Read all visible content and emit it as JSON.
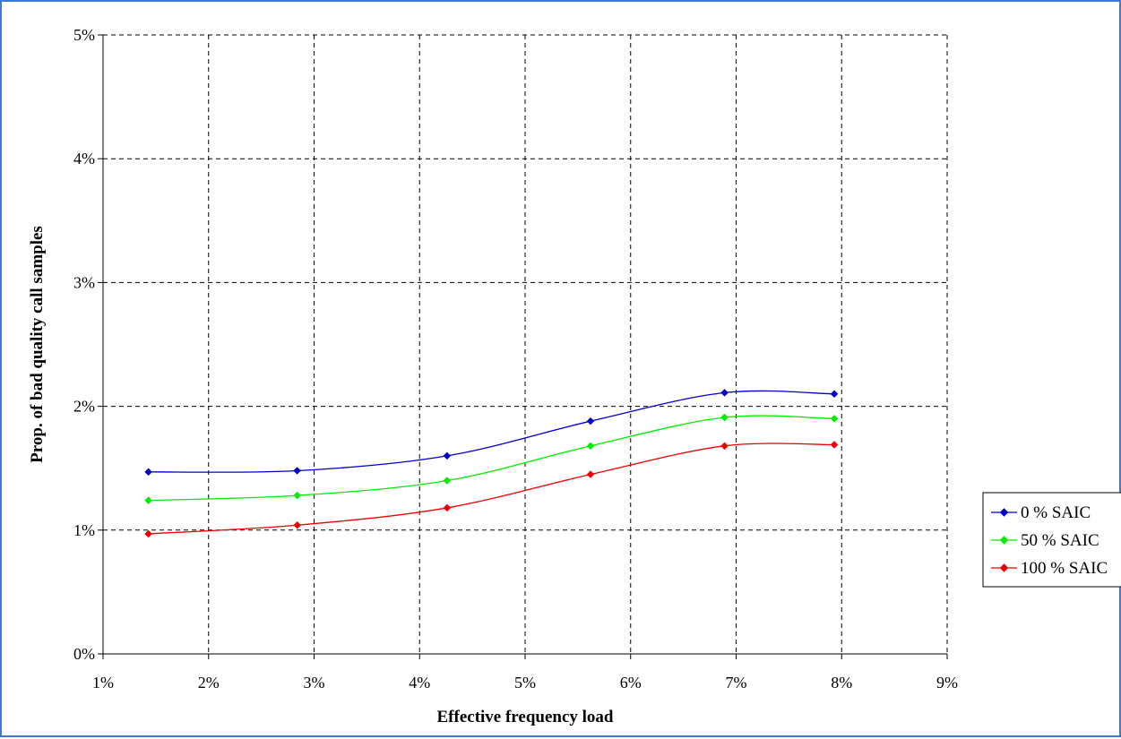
{
  "chart_data": {
    "type": "line",
    "xlabel": "Effective frequency load",
    "ylabel": "Prop. of bad quality call samples",
    "xlim": [
      1,
      9
    ],
    "ylim": [
      0,
      5
    ],
    "x_ticks": [
      "1%",
      "2%",
      "3%",
      "4%",
      "5%",
      "6%",
      "7%",
      "8%",
      "9%"
    ],
    "y_ticks": [
      "0%",
      "1%",
      "2%",
      "3%",
      "4%",
      "5%"
    ],
    "grid": true,
    "grid_style": "dashed",
    "smooth": true,
    "legend_position": "right",
    "x": [
      1.43,
      2.84,
      4.26,
      5.62,
      6.89,
      7.93
    ],
    "series": [
      {
        "name": "0 % SAIC",
        "color": "#0000cc",
        "values": [
          1.47,
          1.48,
          1.6,
          1.88,
          2.11,
          2.1
        ]
      },
      {
        "name": "50 % SAIC",
        "color": "#00ee00",
        "values": [
          1.24,
          1.28,
          1.4,
          1.68,
          1.91,
          1.9
        ]
      },
      {
        "name": "100 % SAIC",
        "color": "#ee0000",
        "values": [
          0.97,
          1.04,
          1.18,
          1.45,
          1.68,
          1.69
        ]
      }
    ]
  }
}
